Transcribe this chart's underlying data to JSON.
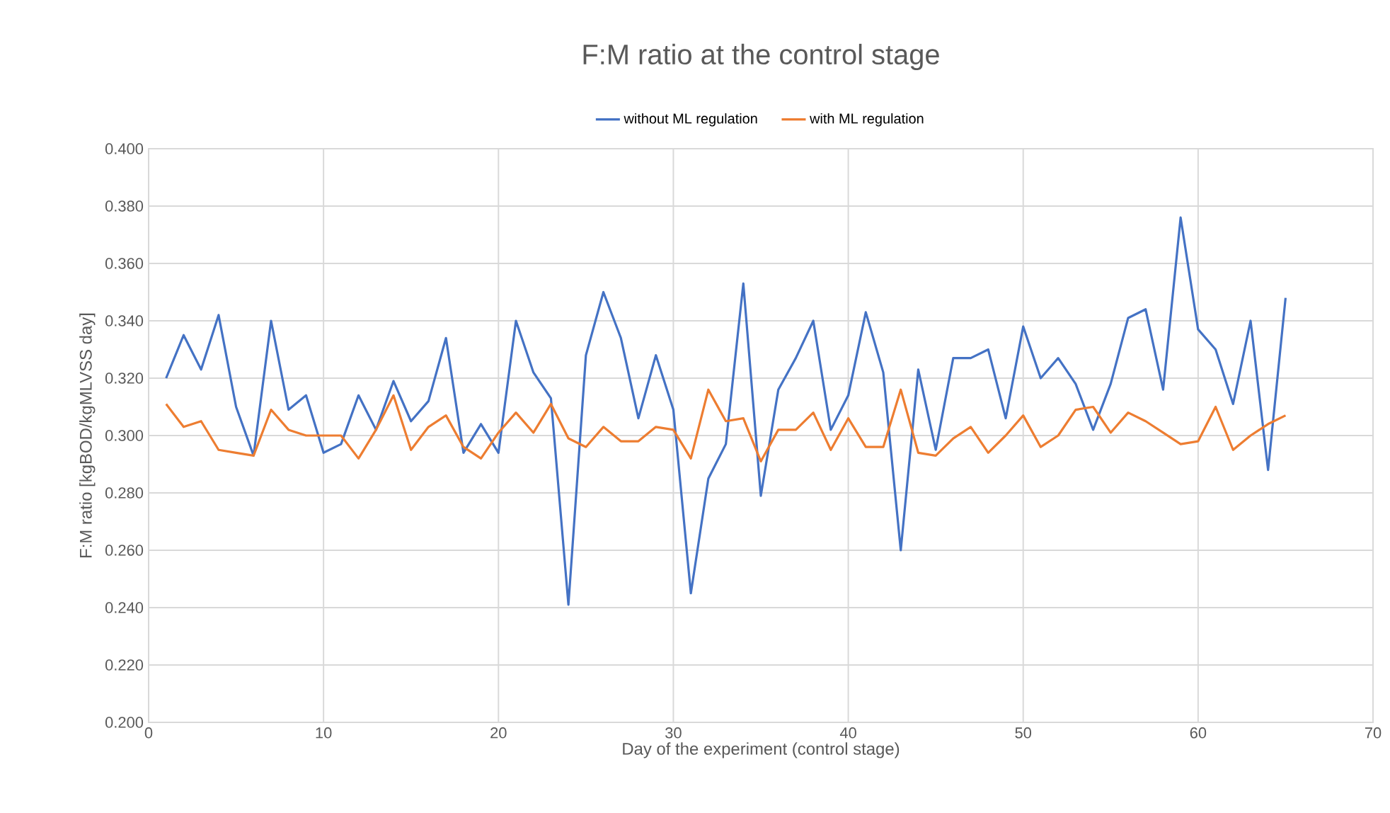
{
  "chart_data": {
    "type": "line",
    "title": "F:M ratio at the control stage",
    "xlabel": "Day of the experiment (control stage)",
    "ylabel": "F:M ratio [kgBOD/kgMLVSS day]",
    "x": [
      1,
      2,
      3,
      4,
      5,
      6,
      7,
      8,
      9,
      10,
      11,
      12,
      13,
      14,
      15,
      16,
      17,
      18,
      19,
      20,
      21,
      22,
      23,
      24,
      25,
      26,
      27,
      28,
      29,
      30,
      31,
      32,
      33,
      34,
      35,
      36,
      37,
      38,
      39,
      40,
      41,
      42,
      43,
      44,
      45,
      46,
      47,
      48,
      49,
      50,
      51,
      52,
      53,
      54,
      55,
      56,
      57,
      58,
      59,
      60,
      61,
      62,
      63,
      64,
      65
    ],
    "series": [
      {
        "name": "without ML regulation",
        "color": "#4472c4",
        "values": [
          0.32,
          0.335,
          0.323,
          0.342,
          0.31,
          0.293,
          0.34,
          0.309,
          0.314,
          0.294,
          0.297,
          0.314,
          0.302,
          0.319,
          0.305,
          0.312,
          0.334,
          0.294,
          0.304,
          0.294,
          0.34,
          0.322,
          0.313,
          0.241,
          0.328,
          0.35,
          0.334,
          0.306,
          0.328,
          0.309,
          0.245,
          0.285,
          0.297,
          0.353,
          0.279,
          0.316,
          0.327,
          0.34,
          0.302,
          0.314,
          0.343,
          0.322,
          0.26,
          0.323,
          0.295,
          0.327,
          0.327,
          0.33,
          0.306,
          0.338,
          0.32,
          0.327,
          0.318,
          0.302,
          0.318,
          0.341,
          0.344,
          0.316,
          0.376,
          0.337,
          0.33,
          0.311,
          0.34,
          0.288,
          0.348
        ]
      },
      {
        "name": "with ML regulation",
        "color": "#ed7d31",
        "values": [
          0.311,
          0.303,
          0.305,
          0.295,
          0.294,
          0.293,
          0.309,
          0.302,
          0.3,
          0.3,
          0.3,
          0.292,
          0.302,
          0.314,
          0.295,
          0.303,
          0.307,
          0.296,
          0.292,
          0.301,
          0.308,
          0.301,
          0.311,
          0.299,
          0.296,
          0.303,
          0.298,
          0.298,
          0.303,
          0.302,
          0.292,
          0.316,
          0.305,
          0.306,
          0.291,
          0.302,
          0.302,
          0.308,
          0.295,
          0.306,
          0.296,
          0.296,
          0.316,
          0.294,
          0.293,
          0.299,
          0.303,
          0.294,
          0.3,
          0.307,
          0.296,
          0.3,
          0.309,
          0.31,
          0.301,
          0.308,
          0.305,
          0.301,
          0.297,
          0.298,
          0.31,
          0.295,
          0.3,
          0.304,
          0.307
        ]
      }
    ],
    "xlim": [
      0,
      70
    ],
    "xticks": [
      0,
      10,
      20,
      30,
      40,
      50,
      60,
      70
    ],
    "ylim": [
      0.2,
      0.4
    ],
    "yticks": [
      {
        "value": 0.2,
        "label": "0.200"
      },
      {
        "value": 0.22,
        "label": "0.220"
      },
      {
        "value": 0.24,
        "label": "0.240"
      },
      {
        "value": 0.26,
        "label": "0.260"
      },
      {
        "value": 0.28,
        "label": "0.280"
      },
      {
        "value": 0.3,
        "label": "0.300"
      },
      {
        "value": 0.32,
        "label": "0.320"
      },
      {
        "value": 0.34,
        "label": "0.340"
      },
      {
        "value": 0.36,
        "label": "0.360"
      },
      {
        "value": 0.38,
        "label": "0.380"
      },
      {
        "value": 0.4,
        "label": "0.400"
      }
    ],
    "grid": true,
    "legend": "top",
    "marker": "none",
    "line_style": "solid"
  }
}
